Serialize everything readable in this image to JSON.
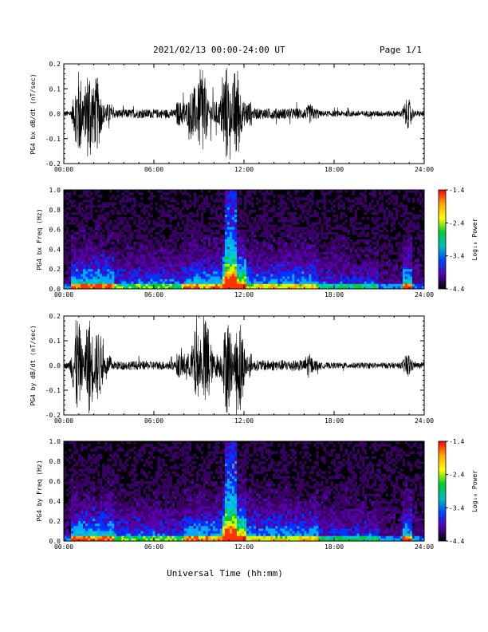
{
  "header": {
    "title": "2021/02/13  00:00-24:00 UT",
    "page": "Page 1/1"
  },
  "footer": {
    "xlabel": "Universal Time (hh:mm)"
  },
  "colorbar": {
    "label": "Log₁₀ Power",
    "ticks": [
      "-1.4",
      "-2.4",
      "-3.4",
      "-4.4"
    ],
    "stops": [
      "#ff0000",
      "#ffaa00",
      "#ffff00",
      "#00cc33",
      "#00bbbb",
      "#0044ff",
      "#5500aa",
      "#000000"
    ]
  },
  "chart_data": [
    {
      "type": "line",
      "ylabel": "PG4 bx dB/dt (nT/sec)",
      "x_ticks": [
        "00:00",
        "06:00",
        "12:00",
        "18:00",
        "24:00"
      ],
      "y_ticks": [
        "0.2",
        "0.1",
        "0.0",
        "-0.1",
        "-0.2"
      ],
      "xlim_hours": [
        0,
        24
      ],
      "ylim": [
        -0.2,
        0.2
      ],
      "envelope_peaks": [
        {
          "t": 1.0,
          "amp": 0.18
        },
        {
          "t": 1.7,
          "amp": 0.2
        },
        {
          "t": 2.2,
          "amp": 0.15
        },
        {
          "t": 8.6,
          "amp": 0.12
        },
        {
          "t": 9.2,
          "amp": 0.2
        },
        {
          "t": 10.8,
          "amp": 0.2
        },
        {
          "t": 11.5,
          "amp": 0.2
        },
        {
          "t": 16.4,
          "amp": 0.04
        },
        {
          "t": 22.9,
          "amp": 0.06
        }
      ]
    },
    {
      "type": "heatmap",
      "ylabel": "PG4 bx Freq (Hz)",
      "x_ticks": [
        "00:00",
        "06:00",
        "12:00",
        "18:00",
        "24:00"
      ],
      "y_ticks": [
        "1.0",
        "0.8",
        "0.6",
        "0.4",
        "0.2",
        "0.0"
      ],
      "ylim": [
        0.0,
        1.0
      ],
      "zlim": [
        -4.4,
        -1.4
      ]
    },
    {
      "type": "line",
      "ylabel": "PG4 by dB/dt (nT/sec)",
      "x_ticks": [
        "00:00",
        "06:00",
        "12:00",
        "18:00",
        "24:00"
      ],
      "y_ticks": [
        "0.2",
        "0.1",
        "0.0",
        "-0.1",
        "-0.2"
      ],
      "xlim_hours": [
        0,
        24
      ],
      "ylim": [
        -0.2,
        0.2
      ],
      "envelope_peaks": [
        {
          "t": 0.9,
          "amp": 0.2
        },
        {
          "t": 1.7,
          "amp": 0.2
        },
        {
          "t": 2.3,
          "amp": 0.15
        },
        {
          "t": 8.8,
          "amp": 0.15
        },
        {
          "t": 9.5,
          "amp": 0.2
        },
        {
          "t": 10.9,
          "amp": 0.2
        },
        {
          "t": 11.7,
          "amp": 0.2
        },
        {
          "t": 16.3,
          "amp": 0.05
        },
        {
          "t": 22.9,
          "amp": 0.05
        }
      ]
    },
    {
      "type": "heatmap",
      "ylabel": "PG4 by Freq (Hz)",
      "x_ticks": [
        "00:00",
        "06:00",
        "12:00",
        "18:00",
        "24:00"
      ],
      "y_ticks": [
        "1.0",
        "0.8",
        "0.6",
        "0.4",
        "0.2",
        "0.0"
      ],
      "ylim": [
        0.0,
        1.0
      ],
      "zlim": [
        -4.4,
        -1.4
      ]
    }
  ]
}
